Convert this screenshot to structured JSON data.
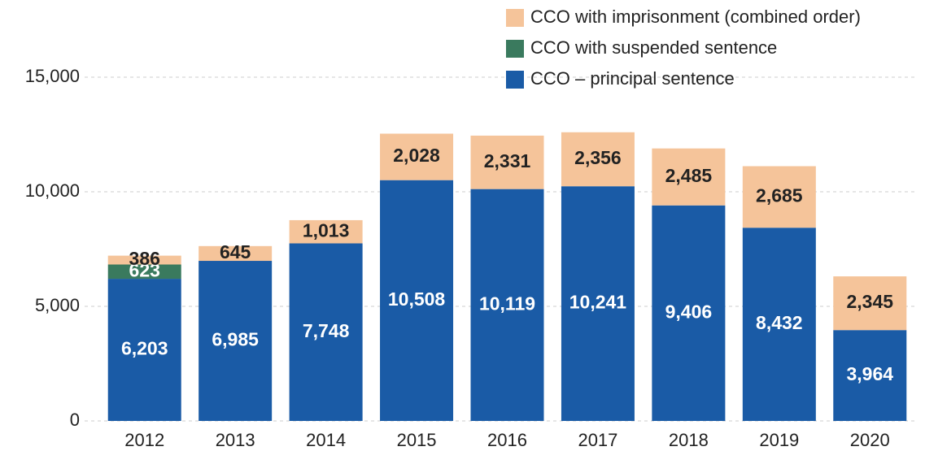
{
  "chart_data": {
    "type": "stacked_bar",
    "categories": [
      "2012",
      "2013",
      "2014",
      "2015",
      "2016",
      "2017",
      "2018",
      "2019",
      "2020"
    ],
    "series": [
      {
        "name": "CCO – principal sentence",
        "color": "#1a5ba6",
        "label_color": "#ffffff",
        "values": [
          6203,
          6985,
          7748,
          10508,
          10119,
          10241,
          9406,
          8432,
          3964
        ],
        "value_labels": [
          "6,203",
          "6,985",
          "7,748",
          "10,508",
          "10,119",
          "10,241",
          "9,406",
          "8,432",
          "3,964"
        ]
      },
      {
        "name": "CCO with suspended sentence",
        "color": "#3a7a5e",
        "label_color": "#ffffff",
        "values": [
          623,
          null,
          null,
          null,
          null,
          null,
          null,
          null,
          null
        ],
        "value_labels": [
          "623",
          null,
          null,
          null,
          null,
          null,
          null,
          null,
          null
        ]
      },
      {
        "name": "CCO with imprisonment (combined order)",
        "color": "#f5c49a",
        "label_color": "#222222",
        "values": [
          386,
          645,
          1013,
          2028,
          2331,
          2356,
          2485,
          2685,
          2345
        ],
        "value_labels": [
          "386",
          "645",
          "1,013",
          "2,028",
          "2,331",
          "2,356",
          "2,485",
          "2,685",
          "2,345"
        ]
      }
    ],
    "ylim": [
      0,
      15000
    ],
    "yticks": [
      0,
      {
        "value": 5000,
        "label": "5,000"
      },
      {
        "value": 10000,
        "label": "10,000"
      },
      {
        "value": 15000,
        "label": "15,000"
      }
    ],
    "grid": true,
    "legend": "top-right"
  }
}
